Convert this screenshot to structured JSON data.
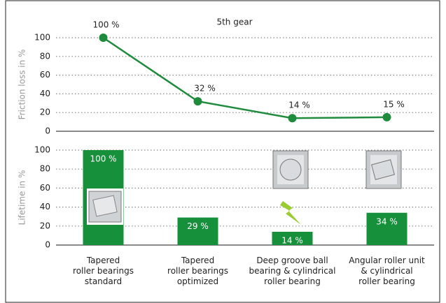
{
  "chart_data": [
    {
      "type": "line",
      "title": "5th gear",
      "y_label": "Friction loss in %",
      "values": [
        100,
        32,
        14,
        15
      ],
      "value_labels": [
        "100 %",
        "32 %",
        "14 %",
        "15 %"
      ],
      "color": "#1e8c3c",
      "ylim": [
        0,
        100
      ],
      "yticks": [
        0,
        20,
        40,
        60,
        80,
        100
      ],
      "grid": true
    },
    {
      "type": "bar",
      "y_label": "Lifetime in %",
      "categories": [
        "Tapered\nroller bearings\nstandard",
        "Tapered\nroller bearings\noptimized",
        "Deep groove ball\nbearing & cylindrical\nroller bearing",
        "Angular roller unit\n& cylindrical\nroller bearing"
      ],
      "values": [
        100,
        29,
        14,
        34
      ],
      "value_labels": [
        "100 %",
        "29 %",
        "14 %",
        "34 %"
      ],
      "color": "#17903c",
      "ylim": [
        0,
        100
      ],
      "yticks": [
        0,
        20,
        40,
        60,
        80,
        100
      ],
      "grid": true
    }
  ]
}
